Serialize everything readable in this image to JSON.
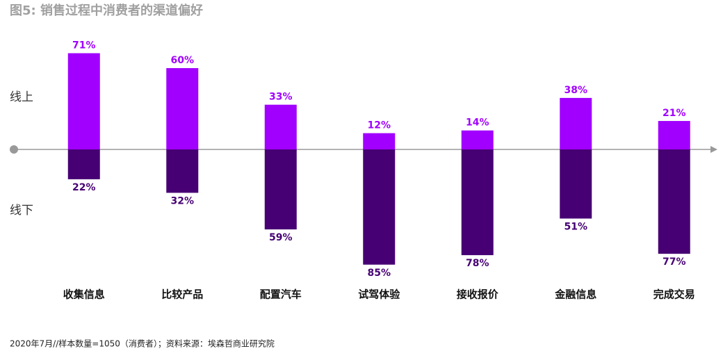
{
  "chart_data": {
    "type": "diverging_bar",
    "title": "图5: 销售过程中消费者的渠道偏好",
    "categories": [
      "收集信息",
      "比较产品",
      "配置汽车",
      "试驾体验",
      "接收报价",
      "金融信息",
      "完成交易"
    ],
    "series": [
      {
        "name": "线上",
        "color": "#a100ff",
        "values": [
          71,
          60,
          33,
          12,
          14,
          38,
          21
        ],
        "value_labels": [
          "71%",
          "60%",
          "33%",
          "12%",
          "14%",
          "38%",
          "21%"
        ]
      },
      {
        "name": "线下",
        "color": "#460073",
        "values": [
          22,
          32,
          59,
          85,
          78,
          51,
          77
        ],
        "value_labels": [
          "22%",
          "32%",
          "59%",
          "85%",
          "78%",
          "51%",
          "77%"
        ]
      }
    ],
    "note": "2020年7月//样本数量=1050（消费者）；资料来源：埃森哲商业研究院"
  }
}
